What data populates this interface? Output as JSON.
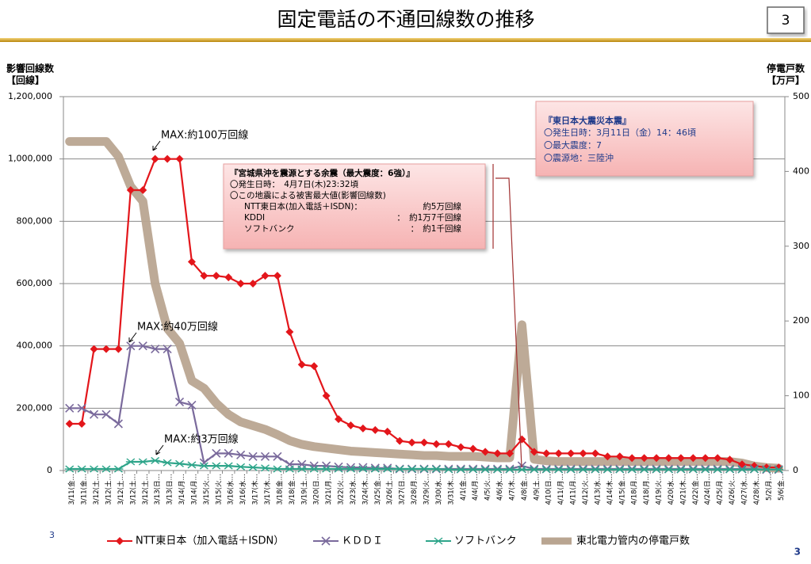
{
  "chart_data": {
    "type": "line",
    "title": "固定電話の不通回線数の推移",
    "page_number": "3",
    "y_axis_title": [
      "影響回線数",
      "【回線】"
    ],
    "y2_axis_title": [
      "停電戸数",
      "【万戸】"
    ],
    "categories": [
      "3/11(金…",
      "3/11(金…",
      "3/12(土…",
      "3/12(土…",
      "3/12(土…",
      "3/12(土…",
      "3/12(土…",
      "3/13(日…",
      "3/13(日…",
      "3/14(月…",
      "3/14(月…",
      "3/15(火…",
      "3/15(火…",
      "3/16(水…",
      "3/16(水…",
      "3/17(木…",
      "3/17(木…",
      "3/18(金…",
      "3/18(金…",
      "3/19(土…",
      "3/20(日…",
      "3/21(月…",
      "3/22(火…",
      "3/23(水…",
      "3/24(木…",
      "3/25(金…",
      "3/26(土…",
      "3/27(日…",
      "3/28(月…",
      "3/29(火…",
      "3/30(水…",
      "3/31(木…",
      "4/1(金…",
      "4/4(月…",
      "4/5(火…",
      "4/6(水…",
      "4/7(木…",
      "4/8(金…",
      "4/9(土…",
      "4/10(日…",
      "4/11(月…",
      "4/11(月…",
      "4/12(火…",
      "4/13(水…",
      "4/14(木…",
      "4/15(金…",
      "4/18(月…",
      "4/18(月…",
      "4/19(火…",
      "4/20(水…",
      "4/21(木…",
      "4/22(金…",
      "4/24(日…",
      "4/25(月…",
      "4/26(火…",
      "4/27(水…",
      "4/28(木…",
      "5/2(月…",
      "5/6(金…"
    ],
    "series": [
      {
        "name": "NTT東日本（加入電話＋ISDN）",
        "color": "#e3161b",
        "marker": "diamond",
        "values": [
          150000,
          150000,
          390000,
          390000,
          390000,
          900000,
          900000,
          1000000,
          1000000,
          1000000,
          670000,
          625000,
          625000,
          620000,
          600000,
          600000,
          625000,
          625000,
          445000,
          340000,
          335000,
          240000,
          165000,
          145000,
          135000,
          130000,
          125000,
          95000,
          90000,
          90000,
          85000,
          85000,
          75000,
          70000,
          60000,
          55000,
          55000,
          100000,
          60000,
          55000,
          55000,
          55000,
          55000,
          55000,
          45000,
          45000,
          40000,
          40000,
          40000,
          40000,
          40000,
          40000,
          40000,
          40000,
          35000,
          20000,
          15000,
          10000,
          10000
        ]
      },
      {
        "name": "ＫＤＤＩ",
        "color": "#7a6a9c",
        "marker": "x",
        "values": [
          200000,
          200000,
          180000,
          180000,
          150000,
          400000,
          400000,
          390000,
          390000,
          220000,
          210000,
          25000,
          55000,
          55000,
          50000,
          45000,
          45000,
          45000,
          20000,
          20000,
          15000,
          15000,
          12000,
          10000,
          10000,
          8000,
          8000,
          5000,
          5000,
          5000,
          5000,
          5000,
          5000,
          5000,
          5000,
          5000,
          5000,
          15000,
          5000,
          5000,
          5000,
          5000,
          5000,
          5000,
          5000,
          5000,
          5000,
          5000,
          5000,
          5000,
          5000,
          5000,
          5000,
          5000,
          5000,
          5000,
          5000,
          3000,
          3000
        ]
      },
      {
        "name": "ソフトバンク",
        "color": "#2ea58a",
        "marker": "star",
        "values": [
          5000,
          5000,
          5000,
          5000,
          5000,
          28000,
          28000,
          32000,
          25000,
          22000,
          18000,
          15000,
          15000,
          15000,
          12000,
          10000,
          8000,
          5000,
          5000,
          5000,
          5000,
          5000,
          5000,
          5000,
          5000,
          5000,
          5000,
          5000,
          5000,
          5000,
          5000,
          3000,
          3000,
          3000,
          3000,
          3000,
          3000,
          3000,
          3000,
          3000,
          3000,
          3000,
          3000,
          3000,
          3000,
          3000,
          3000,
          3000,
          3000,
          3000,
          3000,
          3000,
          3000,
          3000,
          3000,
          3000,
          3000,
          3000,
          3000
        ]
      },
      {
        "name": "東北電力管内の停電戸数",
        "color": "#b9a591",
        "axis": "y2",
        "values": [
          440,
          440,
          440,
          440,
          420,
          380,
          360,
          250,
          190,
          170,
          120,
          110,
          90,
          75,
          65,
          60,
          55,
          48,
          40,
          35,
          32,
          30,
          28,
          26,
          25,
          24,
          23,
          22,
          21,
          20,
          20,
          19,
          19,
          19,
          18,
          17,
          17,
          195,
          15,
          13,
          12,
          12,
          12,
          12,
          12,
          12,
          12,
          12,
          12,
          12,
          12,
          12,
          12,
          12,
          12,
          10,
          6,
          4,
          3
        ]
      }
    ],
    "ylim": [
      0,
      1200000
    ],
    "yticks": [
      0,
      {
        "value": 200000,
        "label": "200,000"
      },
      {
        "value": 400000,
        "label": "400,000"
      },
      {
        "value": 600000,
        "label": "600,000"
      },
      {
        "value": 800000,
        "label": "800,000"
      },
      {
        "value": 1000000,
        "label": "1,000,000"
      },
      {
        "value": 1200000,
        "label": "1,200,000"
      }
    ],
    "y2lim": [
      0,
      500
    ],
    "y2ticks": [
      0,
      100,
      200,
      300,
      400,
      500
    ],
    "grid": true,
    "legend": "bottom",
    "annotations": [
      "MAX:約100万回線",
      "MAX:約40万回線",
      "MAX:約3万回線"
    ],
    "aftershock_box": {
      "title": "『宮城県沖を震源とする余震（最大震度：6強）』",
      "lines": [
        "〇発生日時：　4月7日(木)23:32頃",
        "〇この地震による被害最大値(影響回線数)"
      ],
      "rows": [
        [
          "NTT東日本(加入電話＋ISDN)：",
          "約5万回線"
        ],
        [
          "KDDI",
          "：　約1万7千回線"
        ],
        [
          "ソフトバンク",
          "：　約1千回線"
        ]
      ]
    },
    "earthquake_box": {
      "title": "『東日本大震災本震』",
      "lines": [
        "〇発生日時：3月11日（金）14：46頃",
        "〇最大震度：7",
        "〇震源地：三陸沖"
      ]
    },
    "footer": [
      "3",
      "3"
    ]
  }
}
